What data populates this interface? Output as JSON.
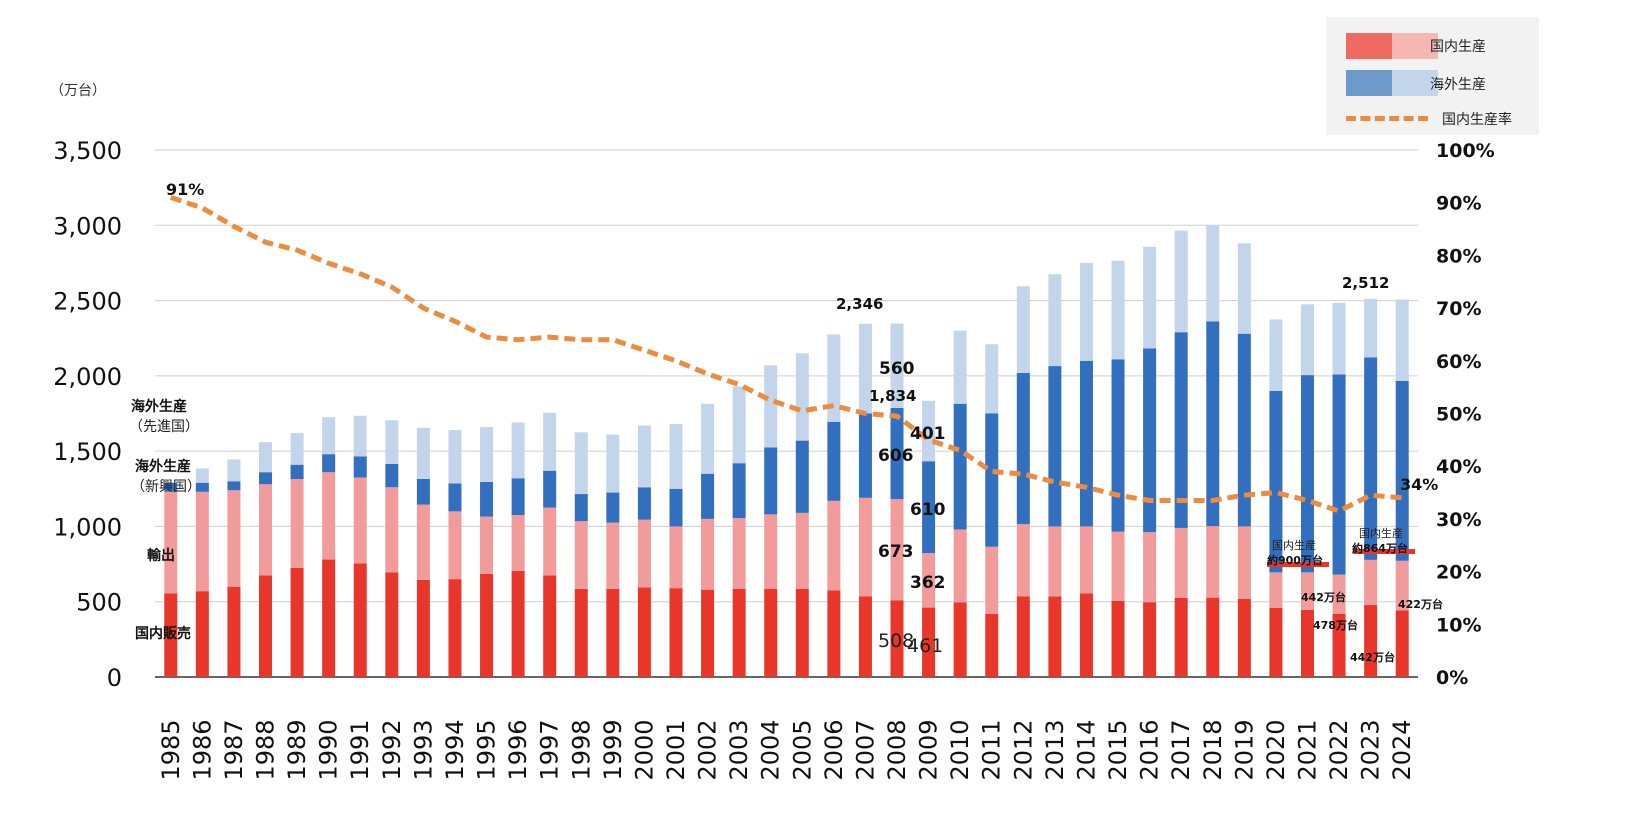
{
  "unit_label": "（万台）",
  "legend": {
    "domestic": "国内生産",
    "overseas": "海外生産",
    "rate": "国内生産率"
  },
  "colors": {
    "domestic_sales": "#e8372a",
    "export": "#f29b9b",
    "overseas_emerging": "#3270bf",
    "overseas_developed": "#c3d5eb",
    "rate_line": "#ed8b3f",
    "legend_dom_dark": "#ef6b62",
    "legend_dom_light": "#f5b7b2",
    "legend_ovs_dark": "#6e9acb",
    "legend_ovs_light": "#c3d5eb"
  },
  "left_annotations": {
    "overseas_developed_title": "海外生産",
    "overseas_developed_sub": "（先進国）",
    "overseas_emerging_title": "海外生産",
    "overseas_emerging_sub": "（新興国）",
    "export": "輸出",
    "domestic_sales": "国内販売"
  },
  "callouts": {
    "total_2007": "2,346",
    "label_560": "560",
    "label_1834": "1,834",
    "label_401": "401",
    "label_606": "606",
    "label_610": "610",
    "label_673": "673",
    "label_362": "362",
    "label_508": "508",
    "label_461": "461",
    "total_2023": "2,512",
    "rate_1985": "91%",
    "rate_2024": "34%",
    "box_2020_title": "国内生産",
    "box_2020_value": "約900万台",
    "box_2023_title": "国内生産",
    "box_2023_value": "約864万台",
    "v_442a": "442万台",
    "v_478": "478万台",
    "v_442b": "442万台",
    "v_422": "422万台"
  },
  "chart_data": {
    "type": "bar",
    "stacked": true,
    "categories": [
      "1985",
      "1986",
      "1987",
      "1988",
      "1989",
      "1990",
      "1991",
      "1992",
      "1993",
      "1994",
      "1995",
      "1996",
      "1997",
      "1998",
      "1999",
      "2000",
      "2001",
      "2002",
      "2003",
      "2004",
      "2005",
      "2006",
      "2007",
      "2008",
      "2009",
      "2010",
      "2011",
      "2012",
      "2013",
      "2014",
      "2015",
      "2016",
      "2017",
      "2018",
      "2019",
      "2020",
      "2021",
      "2022",
      "2023",
      "2024"
    ],
    "ylim": [
      0,
      3500
    ],
    "y_ticks": [
      "0",
      "500",
      "1,000",
      "1,500",
      "2,000",
      "2,500",
      "3,000",
      "3,500"
    ],
    "y2lim": [
      0,
      100
    ],
    "y2_ticks": [
      "0%",
      "10%",
      "20%",
      "30%",
      "40%",
      "50%",
      "60%",
      "70%",
      "80%",
      "90%",
      "100%"
    ],
    "series": [
      {
        "key": "domestic_sales",
        "values": [
          555,
          570,
          600,
          675,
          725,
          780,
          755,
          695,
          645,
          650,
          685,
          705,
          675,
          585,
          585,
          595,
          590,
          580,
          585,
          585,
          585,
          575,
          535,
          508,
          461,
          495,
          420,
          535,
          535,
          555,
          505,
          497,
          525,
          527,
          520,
          460,
          445,
          420,
          478,
          442
        ]
      },
      {
        "key": "export",
        "values": [
          675,
          660,
          640,
          605,
          590,
          580,
          570,
          565,
          500,
          450,
          380,
          370,
          450,
          450,
          440,
          450,
          410,
          470,
          470,
          495,
          505,
          595,
          655,
          673,
          362,
          485,
          445,
          480,
          465,
          445,
          460,
          465,
          465,
          475,
          480,
          235,
          250,
          260,
          300,
          330
        ]
      },
      {
        "key": "overseas_emerging",
        "values": [
          60,
          60,
          60,
          80,
          95,
          120,
          140,
          155,
          170,
          185,
          230,
          245,
          245,
          180,
          200,
          215,
          250,
          300,
          365,
          445,
          480,
          525,
          560,
          606,
          610,
          835,
          885,
          1005,
          1065,
          1100,
          1145,
          1220,
          1300,
          1360,
          1280,
          1205,
          1310,
          1330,
          1345,
          1195
        ]
      },
      {
        "key": "overseas_developed",
        "values": [
          0,
          95,
          145,
          200,
          210,
          245,
          270,
          290,
          340,
          355,
          365,
          370,
          385,
          410,
          385,
          410,
          430,
          465,
          510,
          545,
          580,
          580,
          596,
          560,
          401,
          485,
          460,
          575,
          610,
          650,
          655,
          675,
          675,
          640,
          600,
          475,
          470,
          475,
          389,
          540
        ]
      }
    ],
    "rate_line": {
      "name": "国内生産率",
      "values": [
        91,
        89,
        85.5,
        82.5,
        81,
        78.5,
        76.5,
        74,
        70,
        67.5,
        64.5,
        64,
        64.5,
        64,
        64,
        62,
        60,
        57.5,
        55.5,
        52.5,
        50.5,
        51.5,
        50,
        49.5,
        45,
        43,
        39,
        38.5,
        37,
        36,
        34.5,
        33.5,
        33.5,
        33.5,
        34.5,
        35,
        33.5,
        31.5,
        34.5,
        34
      ]
    }
  }
}
